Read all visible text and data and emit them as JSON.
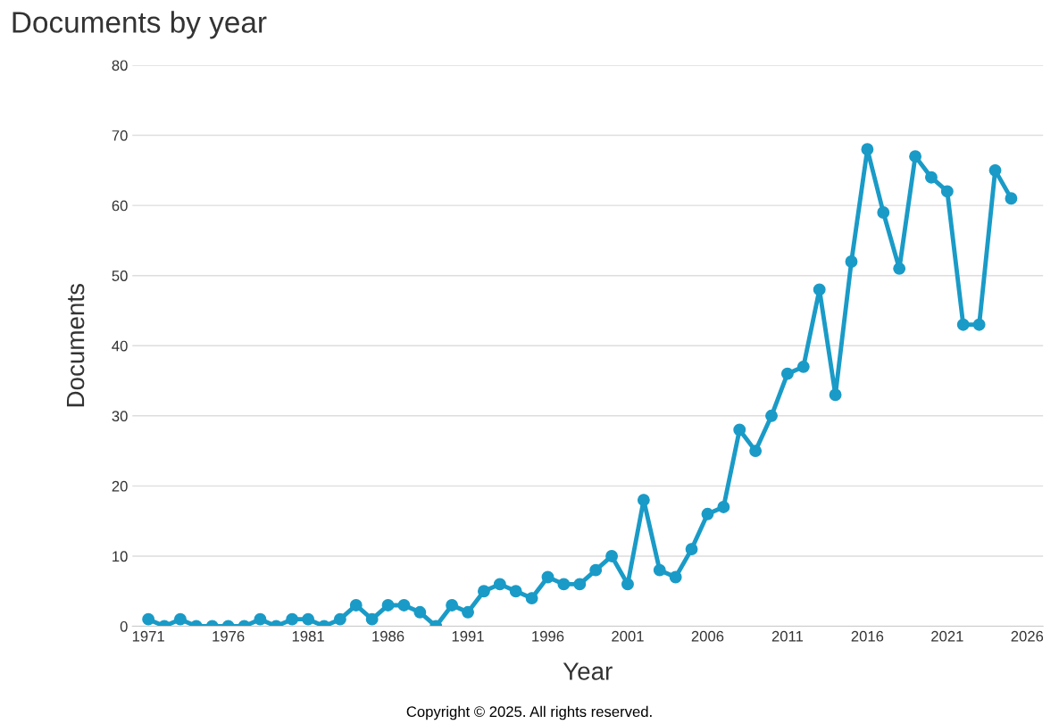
{
  "chart_data": {
    "type": "line",
    "title": "Documents by year",
    "xlabel": "Year",
    "ylabel": "Documents",
    "x": [
      1971,
      1972,
      1973,
      1974,
      1975,
      1976,
      1977,
      1978,
      1979,
      1980,
      1981,
      1982,
      1983,
      1984,
      1985,
      1986,
      1987,
      1988,
      1989,
      1990,
      1991,
      1992,
      1993,
      1994,
      1995,
      1996,
      1997,
      1998,
      1999,
      2000,
      2001,
      2002,
      2003,
      2004,
      2005,
      2006,
      2007,
      2008,
      2009,
      2010,
      2011,
      2012,
      2013,
      2014,
      2015,
      2016,
      2017,
      2018,
      2019,
      2020,
      2021,
      2022,
      2023,
      2024,
      2025
    ],
    "series": [
      {
        "color": "#1a9bc7",
        "values": [
          1,
          0,
          1,
          0,
          0,
          0,
          0,
          1,
          0,
          1,
          1,
          0,
          1,
          3,
          1,
          3,
          3,
          2,
          0,
          3,
          2,
          5,
          6,
          5,
          4,
          7,
          6,
          6,
          8,
          10,
          6,
          18,
          8,
          7,
          11,
          16,
          17,
          28,
          25,
          30,
          36,
          37,
          48,
          33,
          52,
          68,
          59,
          51,
          67,
          64,
          62,
          43,
          43,
          65,
          61
        ]
      }
    ],
    "xlim": [
      1970,
      2027
    ],
    "xticks": [
      1971,
      1976,
      1981,
      1986,
      1991,
      1996,
      2001,
      2006,
      2011,
      2016,
      2021,
      2026
    ],
    "ylim": [
      0,
      80
    ],
    "yticks": [
      0,
      10,
      20,
      30,
      40,
      50,
      60,
      70,
      80
    ],
    "grid": "y",
    "marker": "circle",
    "line_style": "solid",
    "legend": false,
    "annotations": [
      "Copyright © 2025. All rights reserved."
    ]
  }
}
